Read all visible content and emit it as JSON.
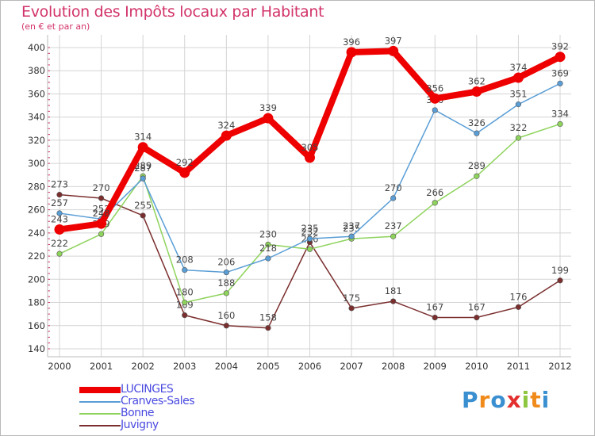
{
  "title": "Evolution des Impôts locaux par Habitant",
  "subtitle": "(en € et par an)",
  "logo": {
    "text": "Proxiti",
    "letters": [
      "P",
      "r",
      "o",
      "x",
      "i",
      "t",
      "i"
    ],
    "colors": [
      "#3a8fd0",
      "#f08a1a",
      "#3a8fd0",
      "#e3302f",
      "#8cc63f",
      "#f08a1a",
      "#3a8fd0"
    ]
  },
  "chart_data": {
    "type": "line",
    "title": "Evolution des Impôts locaux par Habitant",
    "subtitle": "(en € et par an)",
    "xlabel": "",
    "ylabel": "",
    "ylim": [
      140,
      400
    ],
    "yticks": [
      140,
      160,
      180,
      200,
      220,
      240,
      260,
      280,
      300,
      320,
      340,
      360,
      380,
      400
    ],
    "categories": [
      "2000",
      "2001",
      "2002",
      "2003",
      "2004",
      "2005",
      "2006",
      "2007",
      "2008",
      "2009",
      "2010",
      "2011",
      "2012"
    ],
    "grid": true,
    "legend_position": "bottom-left",
    "series": [
      {
        "name": "Juvigny",
        "color": "#7b2e2e",
        "values": [
          273,
          270,
          255,
          169,
          160,
          158,
          232,
          175,
          181,
          167,
          167,
          176,
          199
        ],
        "labels": [
          "273",
          "270",
          "255",
          "169",
          "160",
          "158",
          "232",
          "175",
          "181",
          "167",
          "167",
          "176",
          "199"
        ]
      },
      {
        "name": "Bonne",
        "color": "#8ed35c",
        "values": [
          222,
          239,
          289,
          180,
          188,
          230,
          226,
          235,
          237,
          266,
          289,
          322,
          334
        ],
        "labels": [
          "222",
          "239",
          "289",
          "180",
          "188",
          "230",
          "226",
          "235",
          "237",
          "266",
          "289",
          "322",
          "334"
        ]
      },
      {
        "name": "Cranves-Sales",
        "color": "#5a9ed6",
        "values": [
          257,
          252,
          287,
          208,
          206,
          218,
          235,
          237,
          270,
          346,
          326,
          351,
          369
        ],
        "labels": [
          "257",
          "252",
          "287",
          "208",
          "206",
          "218",
          "235",
          "237",
          "270",
          "346",
          "326",
          "351",
          "369"
        ]
      },
      {
        "name": "LUCINGES",
        "color": "#ee0000",
        "values": [
          243,
          248,
          314,
          292,
          324,
          339,
          305,
          396,
          397,
          356,
          362,
          374,
          392
        ],
        "labels": [
          "243",
          "248",
          "314",
          "292",
          "324",
          "339",
          "305",
          "396",
          "397",
          "356",
          "362",
          "374",
          "392"
        ]
      }
    ]
  }
}
